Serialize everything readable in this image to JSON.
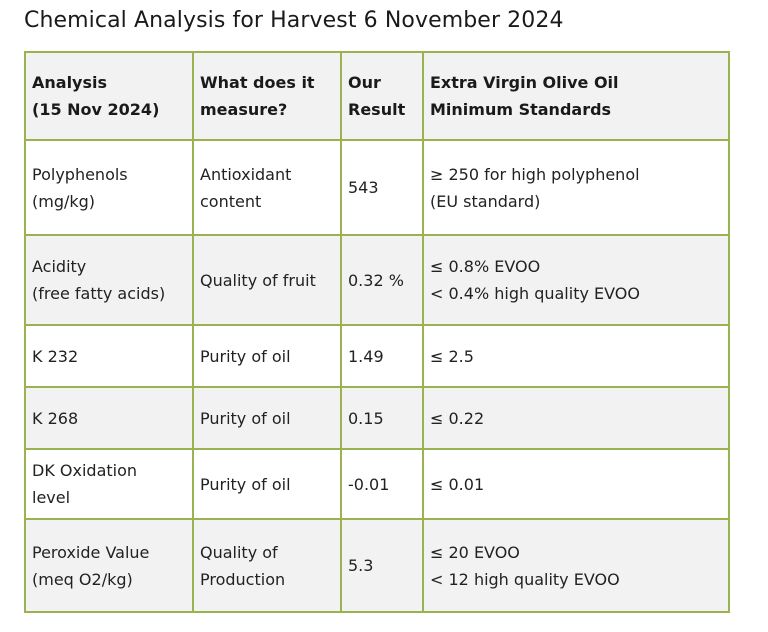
{
  "title": "Chemical Analysis for Harvest 6 November 2024",
  "colors": {
    "border": "#9ab24f",
    "shaded_row": "#f2f2f2"
  },
  "table": {
    "headers": [
      "Analysis\n(15 Nov 2024)",
      "What does it\nmeasure?",
      "Our\nResult",
      "Extra Virgin Olive Oil\nMinimum Standards"
    ],
    "rows": [
      [
        "Polyphenols\n(mg/kg)",
        "Antioxidant\ncontent",
        "543",
        "≥ 250 for high polyphenol\n(EU standard)"
      ],
      [
        "Acidity\n(free fatty acids)",
        "Quality of fruit",
        "0.32 %",
        "≤ 0.8% EVOO\n< 0.4% high quality EVOO"
      ],
      [
        "K 232",
        "Purity of oil",
        "1.49",
        "≤ 2.5"
      ],
      [
        "K 268",
        "Purity of oil",
        "0.15",
        "≤ 0.22"
      ],
      [
        "DK Oxidation\nlevel",
        "Purity of oil",
        "-0.01",
        "≤ 0.01"
      ],
      [
        "Peroxide Value\n(meq O2/kg)",
        "Quality of\nProduction",
        "5.3",
        "≤ 20 EVOO\n< 12 high quality EVOO"
      ]
    ]
  }
}
